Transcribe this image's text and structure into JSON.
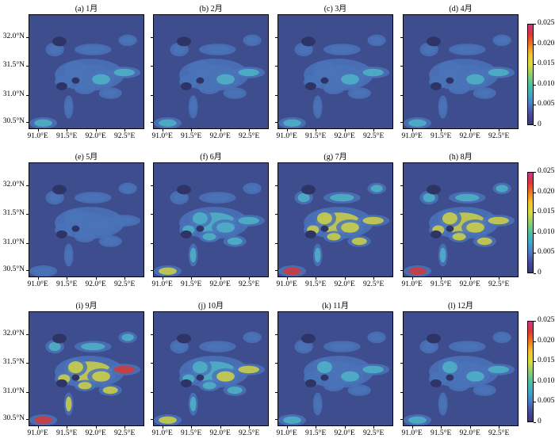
{
  "panels": [
    {
      "title": "(a) 1月",
      "month": 1,
      "level": 0.18
    },
    {
      "title": "(b) 2月",
      "month": 2,
      "level": 0.18
    },
    {
      "title": "(c) 3月",
      "month": 3,
      "level": 0.18
    },
    {
      "title": "(d) 4月",
      "month": 4,
      "level": 0.17
    },
    {
      "title": "(e) 5月",
      "month": 5,
      "level": 0.12
    },
    {
      "title": "(f) 6月",
      "month": 6,
      "level": 0.32
    },
    {
      "title": "(g) 7月",
      "month": 7,
      "level": 0.55
    },
    {
      "title": "(h) 8月",
      "month": 8,
      "level": 0.55
    },
    {
      "title": "(i) 9月",
      "month": 9,
      "level": 0.6
    },
    {
      "title": "(j) 10月",
      "month": 10,
      "level": 0.35
    },
    {
      "title": "(k) 11月",
      "month": 11,
      "level": 0.2
    },
    {
      "title": "(l) 12月",
      "month": 12,
      "level": 0.2
    }
  ],
  "lat_ticks": [
    "32.0°N",
    "31.5°N",
    "31.0°N",
    "30.5°N"
  ],
  "lon_ticks": [
    "91.0°E",
    "91.5°E",
    "92.0°E",
    "92.5°E"
  ],
  "colorbar": {
    "ticks": [
      "0.025",
      "0.020",
      "0.015",
      "0.010",
      "0.005",
      "0"
    ],
    "colors": [
      "#d0358a",
      "#e0342f",
      "#f07a1e",
      "#f5c52a",
      "#d9dc3a",
      "#8fd06a",
      "#4cc1a0",
      "#3fa8c9",
      "#4a7cc4",
      "#464a9a",
      "#3a3a7d"
    ]
  },
  "map_colors": {
    "background": "#3d4d8e",
    "low": "#4a73b8",
    "mid": "#4fb6c7",
    "high": "#d9d83f",
    "peak": "#e0352f",
    "lake": "#2e3466"
  }
}
